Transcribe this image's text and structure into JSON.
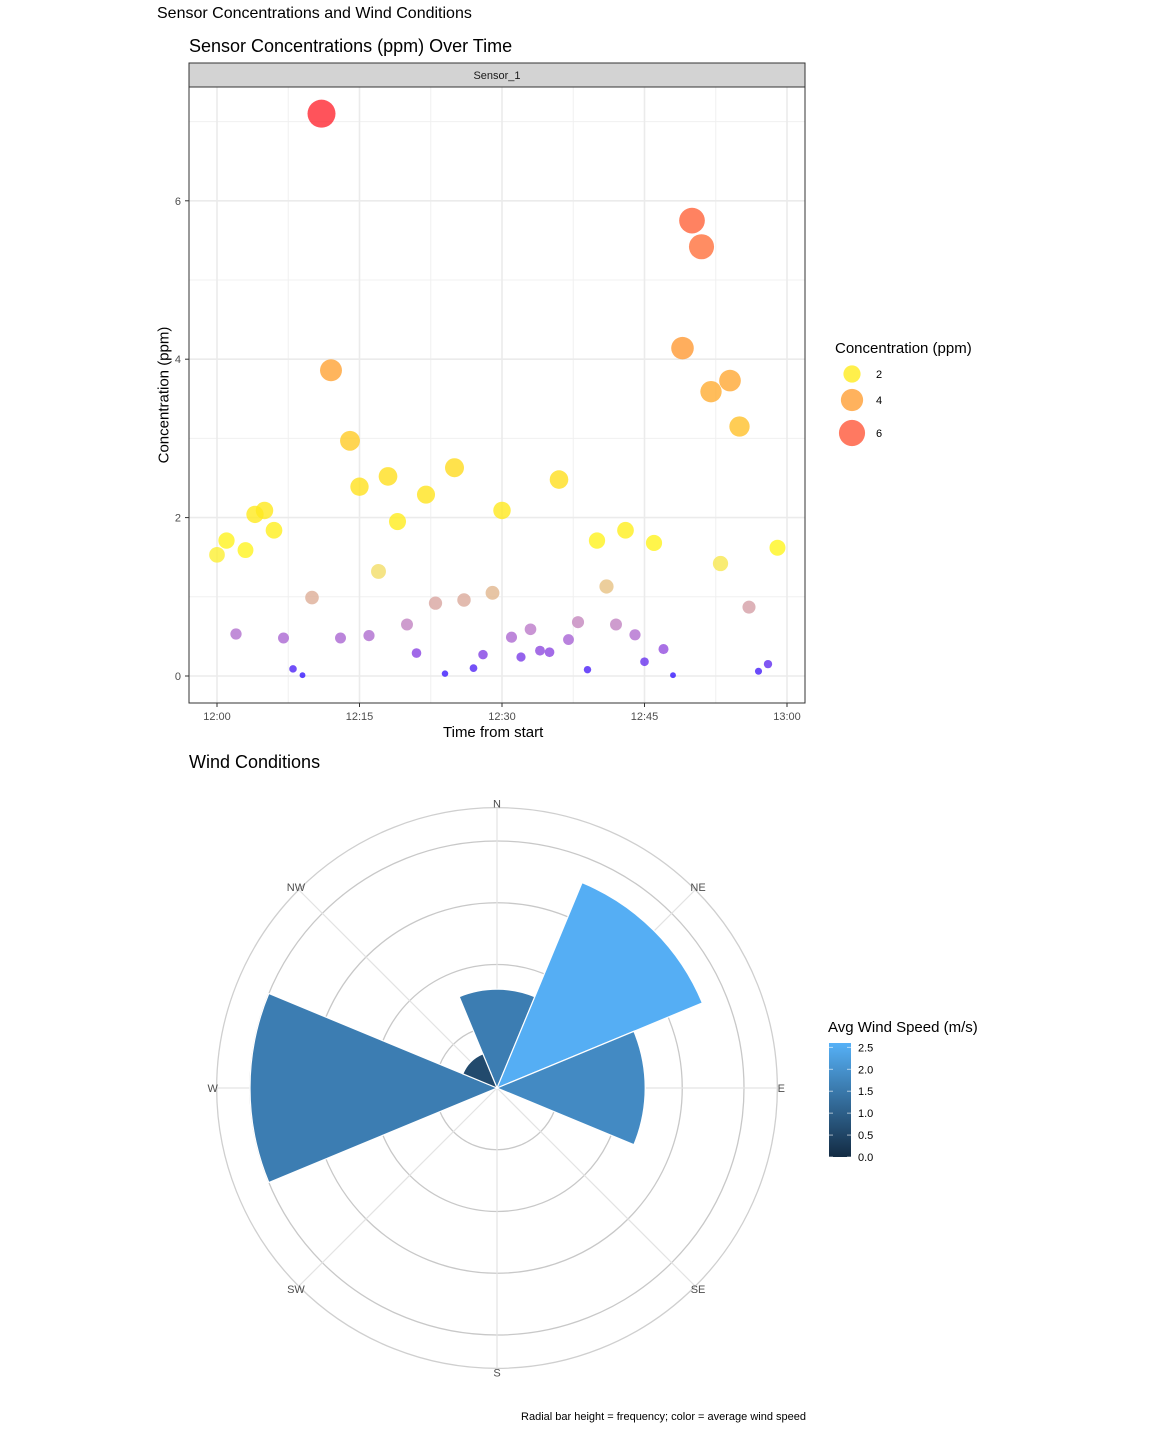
{
  "title": "Sensor Concentrations and Wind Conditions",
  "caption": "Radial bar height = frequency; color = average wind speed",
  "chart_data": [
    {
      "type": "scatter",
      "title": "Sensor Concentrations (ppm) Over Time",
      "facet": "Sensor_1",
      "xlabel": "Time from start",
      "ylabel": "Concentration (ppm)",
      "x_unit": "minutes from 12:00",
      "xlim": [
        -2,
        62
      ],
      "ylim": [
        -0.35,
        7.45
      ],
      "x_ticks": [
        0,
        15,
        30,
        45,
        60
      ],
      "x_tick_labels": [
        "12:00",
        "12:15",
        "12:30",
        "12:45",
        "13:00"
      ],
      "y_ticks": [
        0,
        2,
        4,
        6
      ],
      "y_tick_labels": [
        "0",
        "2",
        "4",
        "6"
      ],
      "grid": true,
      "legend": {
        "title": "Concentration (ppm)",
        "position": "right",
        "values": [
          2,
          4,
          6
        ],
        "labels": [
          "2",
          "4",
          "6"
        ]
      },
      "x": [
        0,
        1,
        2,
        3,
        4,
        5,
        6,
        7,
        8,
        9,
        10,
        11,
        12,
        13,
        14,
        15,
        16,
        17,
        18,
        19,
        20,
        21,
        22,
        23,
        24,
        25,
        26,
        27,
        28,
        29,
        30,
        31,
        32,
        33,
        34,
        35,
        36,
        37,
        38,
        39,
        40,
        41,
        42,
        43,
        44,
        45,
        46,
        47,
        48,
        49,
        50,
        51,
        52,
        53,
        54,
        55,
        56,
        57,
        58,
        59
      ],
      "y": [
        1.53,
        1.71,
        0.53,
        1.59,
        2.04,
        2.09,
        1.84,
        0.48,
        0.09,
        0.01,
        0.99,
        7.1,
        3.86,
        0.48,
        2.97,
        2.39,
        0.51,
        1.32,
        2.52,
        1.95,
        0.65,
        0.29,
        2.29,
        0.92,
        0.03,
        2.63,
        0.96,
        0.1,
        0.27,
        1.05,
        2.09,
        0.49,
        0.24,
        0.59,
        0.32,
        0.3,
        2.48,
        0.46,
        0.68,
        0.08,
        1.71,
        1.13,
        0.65,
        1.84,
        0.52,
        0.18,
        1.68,
        0.34,
        0.01,
        4.14,
        5.75,
        5.42,
        3.59,
        1.42,
        3.73,
        3.15,
        0.87,
        0.06,
        0.15,
        1.62
      ]
    },
    {
      "type": "bar",
      "subtype": "polar",
      "title": "Wind Conditions",
      "categories": [
        "N",
        "NE",
        "E",
        "SE",
        "S",
        "SW",
        "W",
        "NW"
      ],
      "values": [
        8,
        18,
        12,
        0,
        0,
        0,
        20,
        3
      ],
      "avg_wind_speed": [
        1.6,
        2.55,
        1.85,
        null,
        null,
        null,
        1.6,
        0.6
      ],
      "r_ticks": [
        5,
        10,
        15,
        20
      ],
      "rlim": [
        0,
        22.7
      ],
      "legend": {
        "title": "Avg Wind Speed (m/s)",
        "position": "right",
        "range": [
          0,
          2.6
        ],
        "ticks": [
          0,
          0.5,
          1,
          1.5,
          2,
          2.5
        ],
        "tick_labels": [
          "0.0",
          "0.5",
          "1.0",
          "1.5",
          "2.0",
          "2.5"
        ],
        "low_color": "#132B43",
        "high_color": "#56B1F7"
      }
    }
  ]
}
